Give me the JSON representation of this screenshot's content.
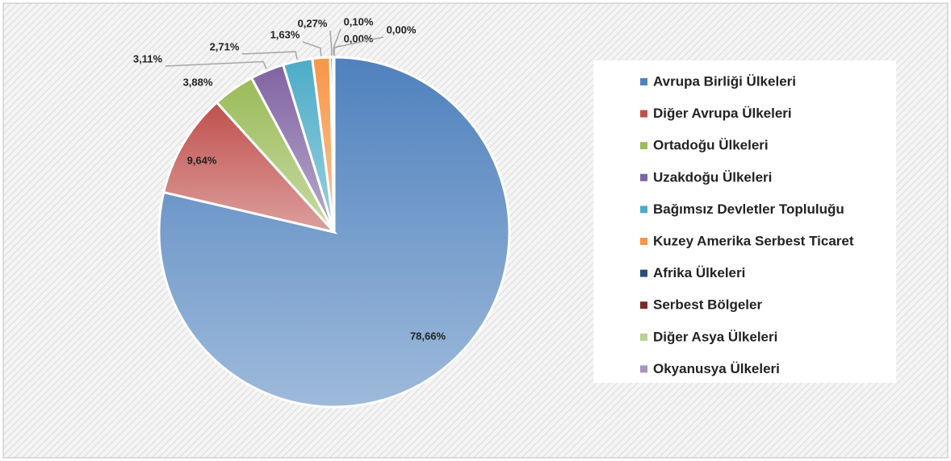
{
  "chart_data": {
    "type": "pie",
    "categories": [
      "Avrupa Birliği Ülkeleri",
      "Diğer Avrupa Ülkeleri",
      "Ortadoğu Ülkeleri",
      "Uzakdoğu Ülkeleri",
      "Bağımsız Devletler Topluluğu",
      "Kuzey Amerika Serbest Ticaret",
      "Afrika Ülkeleri",
      "Serbest Bölgeler",
      "Diğer Asya Ülkeleri",
      "Okyanusya Ülkeleri"
    ],
    "values": [
      78.66,
      9.64,
      3.88,
      3.11,
      2.71,
      1.63,
      0.27,
      0.1,
      0.0,
      0.0
    ],
    "value_labels": [
      "78,66%",
      "9,64%",
      "3,88%",
      "3,11%",
      "2,71%",
      "1,63%",
      "0,27%",
      "0,10%",
      "0,00%",
      "0,00%"
    ],
    "colors": [
      "#4f81bd",
      "#c0504d",
      "#9bbb59",
      "#8064a2",
      "#4bacc6",
      "#f79646",
      "#2c4d75",
      "#772c2a",
      "#b9d08f",
      "#a795bd"
    ],
    "legend": "right"
  }
}
